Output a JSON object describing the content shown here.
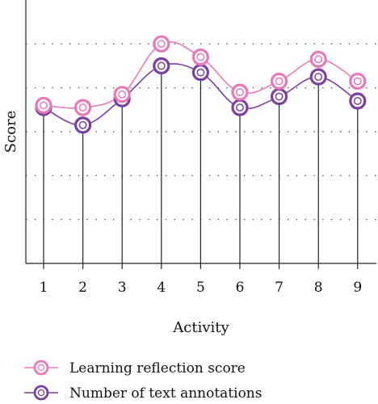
{
  "chart_data": {
    "type": "line",
    "title": "",
    "xlabel": "Activity",
    "ylabel": "Score",
    "categories": [
      "1",
      "2",
      "3",
      "4",
      "5",
      "6",
      "7",
      "8",
      "9"
    ],
    "ylim": [
      0,
      6
    ],
    "grid": "horizontal-dotted",
    "legend_position": "bottom-left",
    "series": [
      {
        "name": "Learning reflection score",
        "color": "#e879b9",
        "values": [
          3.6,
          3.55,
          3.85,
          5.0,
          4.7,
          3.9,
          4.15,
          4.65,
          4.15
        ]
      },
      {
        "name": "Number of text annotations",
        "color": "#7b3fa0",
        "values": [
          3.55,
          3.15,
          3.75,
          4.5,
          4.35,
          3.55,
          3.8,
          4.25,
          3.7
        ]
      }
    ]
  }
}
